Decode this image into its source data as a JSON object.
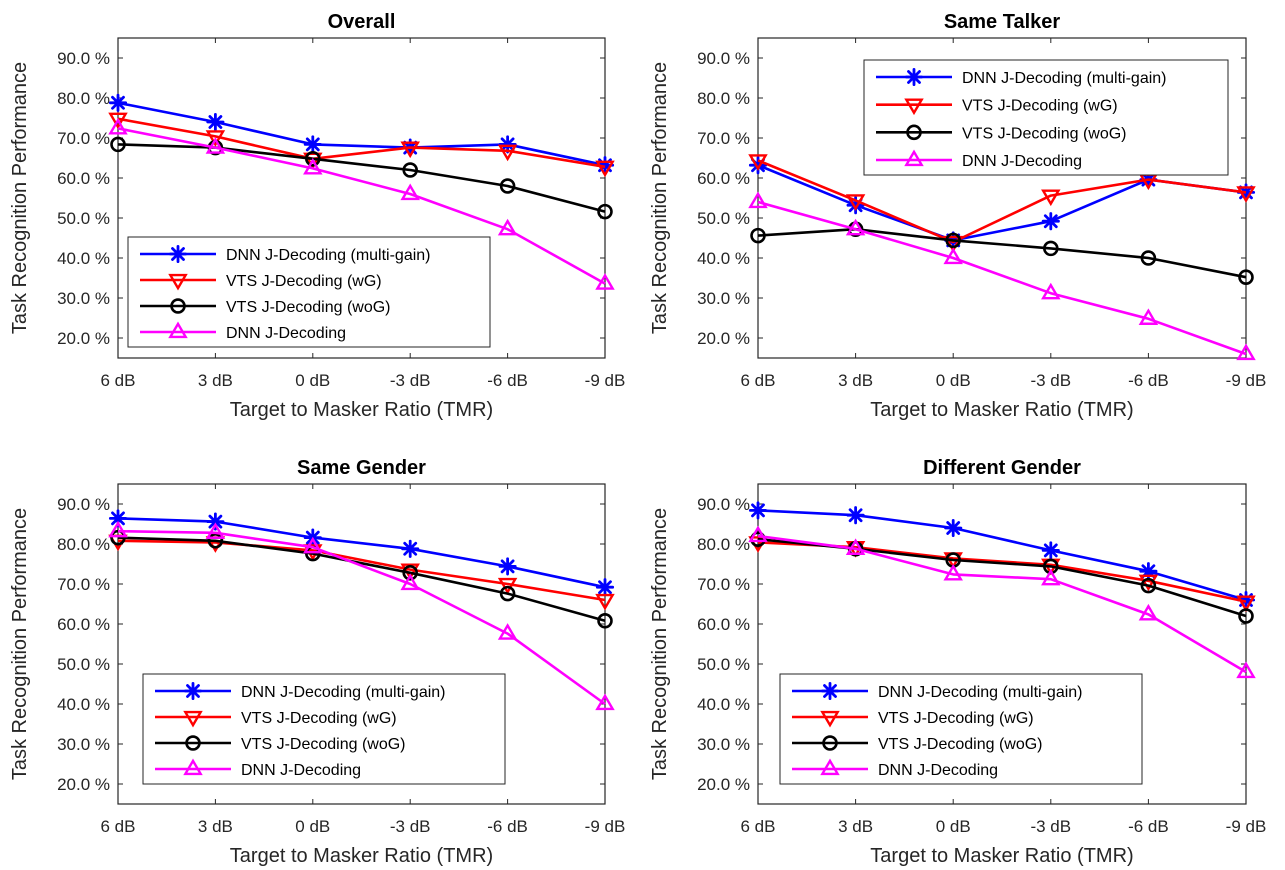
{
  "chart_data": [
    {
      "type": "line",
      "title": "Overall",
      "xlabel": "Target to Masker Ratio (TMR)",
      "ylabel": "Task Recognition Performance",
      "categories": [
        "6 dB",
        "3 dB",
        "0 dB",
        "-3 dB",
        "-6 dB",
        "-9 dB"
      ],
      "ylim": [
        15,
        95
      ],
      "yticks": [
        "20.0 %",
        "30.0 %",
        "40.0 %",
        "50.0 %",
        "60.0 %",
        "70.0 %",
        "80.0 %",
        "90.0 %"
      ],
      "legend_position": "bottom-left",
      "series": [
        {
          "name": "DNN J-Decoding (multi-gain)",
          "color": "#0000ff",
          "marker": "asterisk",
          "values": [
            78.8,
            74.0,
            68.4,
            67.6,
            68.4,
            63.2
          ]
        },
        {
          "name": "VTS J-Decoding (wG)",
          "color": "#ff0000",
          "marker": "triangle-down",
          "values": [
            74.8,
            70.4,
            64.8,
            67.6,
            66.8,
            62.8
          ]
        },
        {
          "name": "VTS J-Decoding (woG)",
          "color": "#000000",
          "marker": "circle",
          "values": [
            68.4,
            67.6,
            64.8,
            62.0,
            58.0,
            51.6
          ]
        },
        {
          "name": "DNN J-Decoding",
          "color": "#ff00ff",
          "marker": "triangle-up",
          "values": [
            72.4,
            67.6,
            62.4,
            56.0,
            47.2,
            33.6
          ]
        }
      ]
    },
    {
      "type": "line",
      "title": "Same Talker",
      "xlabel": "Target to Masker Ratio (TMR)",
      "ylabel": "Task Recognition Performance",
      "categories": [
        "6 dB",
        "3 dB",
        "0 dB",
        "-3 dB",
        "-6 dB",
        "-9 dB"
      ],
      "ylim": [
        15,
        95
      ],
      "yticks": [
        "20.0 %",
        "30.0 %",
        "40.0 %",
        "50.0 %",
        "60.0 %",
        "70.0 %",
        "80.0 %",
        "90.0 %"
      ],
      "legend_position": "top-right",
      "series": [
        {
          "name": "DNN J-Decoding (multi-gain)",
          "color": "#0000ff",
          "marker": "asterisk",
          "values": [
            63.2,
            53.2,
            44.4,
            49.2,
            59.6,
            56.4
          ]
        },
        {
          "name": "VTS J-Decoding (wG)",
          "color": "#ff0000",
          "marker": "triangle-down",
          "values": [
            64.4,
            54.4,
            44.0,
            55.6,
            59.6,
            56.4
          ]
        },
        {
          "name": "VTS J-Decoding (woG)",
          "color": "#000000",
          "marker": "circle",
          "values": [
            45.6,
            47.2,
            44.4,
            42.4,
            40.0,
            35.2
          ]
        },
        {
          "name": "DNN J-Decoding",
          "color": "#ff00ff",
          "marker": "triangle-up",
          "values": [
            54.0,
            47.2,
            40.0,
            31.2,
            24.8,
            16.0
          ]
        }
      ]
    },
    {
      "type": "line",
      "title": "Same Gender",
      "xlabel": "Target to Masker Ratio (TMR)",
      "ylabel": "Task Recognition Performance",
      "categories": [
        "6 dB",
        "3 dB",
        "0 dB",
        "-3 dB",
        "-6 dB",
        "-9 dB"
      ],
      "ylim": [
        15,
        95
      ],
      "yticks": [
        "20.0 %",
        "30.0 %",
        "40.0 %",
        "50.0 %",
        "60.0 %",
        "70.0 %",
        "80.0 %",
        "90.0 %"
      ],
      "legend_position": "bottom-left",
      "series": [
        {
          "name": "DNN J-Decoding (multi-gain)",
          "color": "#0000ff",
          "marker": "asterisk",
          "values": [
            86.4,
            85.6,
            81.6,
            78.8,
            74.4,
            69.2
          ]
        },
        {
          "name": "VTS J-Decoding (wG)",
          "color": "#ff0000",
          "marker": "triangle-down",
          "values": [
            80.8,
            80.4,
            78.4,
            73.6,
            70.0,
            66.0
          ]
        },
        {
          "name": "VTS J-Decoding (woG)",
          "color": "#000000",
          "marker": "circle",
          "values": [
            81.6,
            80.8,
            77.6,
            72.8,
            67.6,
            60.8
          ]
        },
        {
          "name": "DNN J-Decoding",
          "color": "#ff00ff",
          "marker": "triangle-up",
          "values": [
            83.2,
            82.8,
            79.2,
            70.0,
            57.6,
            40.0
          ]
        }
      ]
    },
    {
      "type": "line",
      "title": "Different Gender",
      "xlabel": "Target to Masker Ratio (TMR)",
      "ylabel": "Task Recognition Performance",
      "categories": [
        "6 dB",
        "3 dB",
        "0 dB",
        "-3 dB",
        "-6 dB",
        "-9 dB"
      ],
      "ylim": [
        15,
        95
      ],
      "yticks": [
        "20.0 %",
        "30.0 %",
        "40.0 %",
        "50.0 %",
        "60.0 %",
        "70.0 %",
        "80.0 %",
        "90.0 %"
      ],
      "legend_position": "bottom-left",
      "series": [
        {
          "name": "DNN J-Decoding (multi-gain)",
          "color": "#0000ff",
          "marker": "asterisk",
          "values": [
            88.4,
            87.2,
            84.0,
            78.4,
            73.2,
            66.0
          ]
        },
        {
          "name": "VTS J-Decoding (wG)",
          "color": "#ff0000",
          "marker": "triangle-down",
          "values": [
            80.4,
            79.2,
            76.4,
            74.8,
            70.8,
            65.6
          ]
        },
        {
          "name": "VTS J-Decoding (woG)",
          "color": "#000000",
          "marker": "circle",
          "values": [
            81.2,
            78.8,
            76.0,
            74.4,
            69.6,
            62.0
          ]
        },
        {
          "name": "DNN J-Decoding",
          "color": "#ff00ff",
          "marker": "triangle-up",
          "values": [
            82.0,
            78.8,
            72.4,
            71.2,
            62.4,
            48.0
          ]
        }
      ]
    }
  ]
}
